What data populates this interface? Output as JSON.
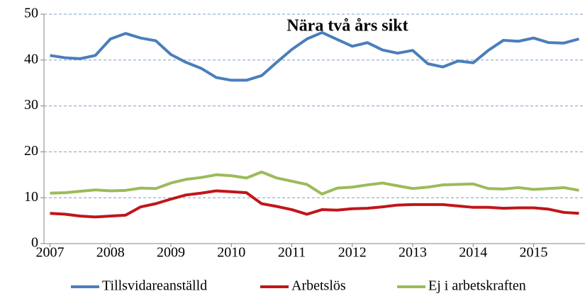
{
  "chart_data": {
    "type": "line",
    "title": "Nära två års sikt",
    "x": [
      2007,
      2007.25,
      2007.5,
      2007.75,
      2008,
      2008.25,
      2008.5,
      2008.75,
      2009,
      2009.25,
      2009.5,
      2009.75,
      2010,
      2010.25,
      2010.5,
      2010.75,
      2011,
      2011.25,
      2011.5,
      2011.75,
      2012,
      2012.25,
      2012.5,
      2012.75,
      2013,
      2013.25,
      2013.5,
      2013.75,
      2014,
      2014.25,
      2014.5,
      2014.75,
      2015,
      2015.25,
      2015.5,
      2015.75
    ],
    "series": [
      {
        "name": "Tillsvidareanställd",
        "color": "#4a7ebb",
        "values": [
          41,
          40.5,
          40.3,
          41,
          44.6,
          45.8,
          44.8,
          44.2,
          41.2,
          39.5,
          38.2,
          36.2,
          35.6,
          35.6,
          36.6,
          39.5,
          42.3,
          44.6,
          46,
          44.5,
          43,
          43.8,
          42.2,
          41.5,
          42.1,
          39.2,
          38.5,
          39.8,
          39.4,
          42.1,
          44.3,
          44.1,
          44.8,
          43.8,
          43.7,
          44.6
        ]
      },
      {
        "name": "Arbetslös",
        "color": "#c0161a",
        "values": [
          6.6,
          6.4,
          6.0,
          5.8,
          6.0,
          6.2,
          8.0,
          8.7,
          9.7,
          10.6,
          11.0,
          11.5,
          11.3,
          11.1,
          8.7,
          8.1,
          7.4,
          6.4,
          7.4,
          7.3,
          7.6,
          7.7,
          8.0,
          8.4,
          8.5,
          8.5,
          8.5,
          8.2,
          7.9,
          7.9,
          7.7,
          7.8,
          7.8,
          7.5,
          6.8,
          6.6
        ]
      },
      {
        "name": "Ej i arbetskraften",
        "color": "#9bbb59",
        "values": [
          11,
          11.1,
          11.4,
          11.7,
          11.5,
          11.6,
          12.1,
          12.0,
          13.2,
          14.0,
          14.4,
          15.0,
          14.8,
          14.3,
          15.6,
          14.3,
          13.6,
          12.9,
          10.8,
          12.1,
          12.3,
          12.8,
          13.2,
          12.6,
          12.0,
          12.3,
          12.8,
          12.9,
          13.0,
          12.0,
          11.9,
          12.2,
          11.8,
          12.0,
          12.2,
          11.6
        ]
      }
    ],
    "xlim": [
      2006.9,
      2015.85
    ],
    "xticks": [
      2007,
      2008,
      2009,
      2010,
      2011,
      2012,
      2013,
      2014,
      2015
    ],
    "ylim": [
      0,
      50
    ],
    "yticks": [
      0,
      10,
      20,
      30,
      40,
      50
    ],
    "grid": true,
    "legend": "bottom"
  }
}
